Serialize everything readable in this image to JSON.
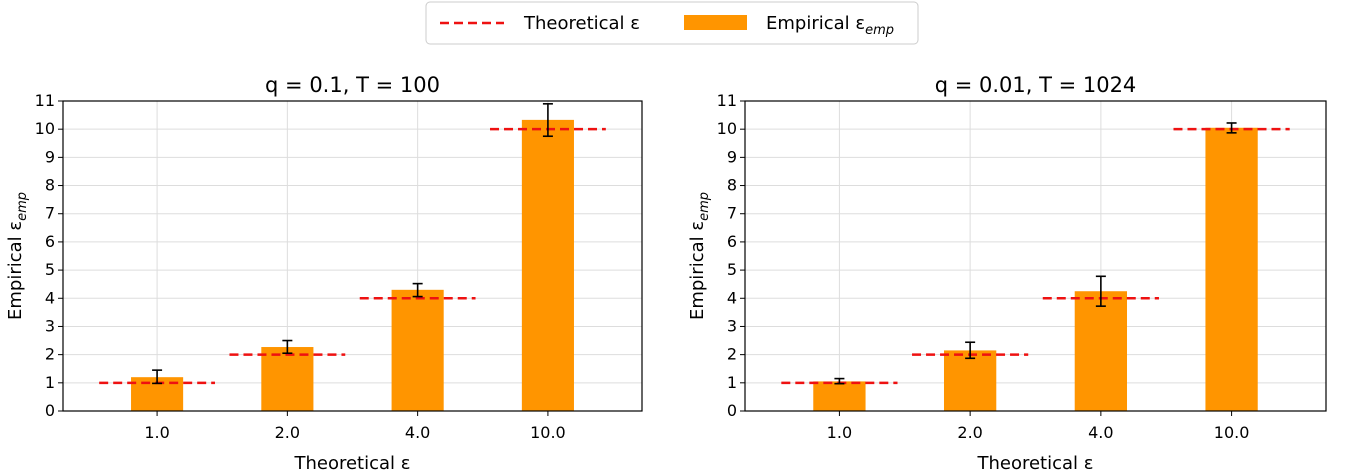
{
  "legend": {
    "placement": "top-center",
    "theoretical_label": "Theoretical ε",
    "empirical_label": "Empirical ε",
    "empirical_sub": "emp"
  },
  "colors": {
    "bar": "#ff9500",
    "theory_line": "#ee1111",
    "grid": "#dddddd",
    "error": "#000000"
  },
  "chart_data": [
    {
      "type": "bar",
      "title": "q = 0.1, T = 100",
      "xlabel": "Theoretical ε",
      "ylabel": "Empirical ε",
      "ylabel_sub": "emp",
      "categories": [
        "1.0",
        "2.0",
        "4.0",
        "10.0"
      ],
      "theoretical": [
        1,
        2,
        4,
        10
      ],
      "values": [
        1.2,
        2.27,
        4.3,
        10.33
      ],
      "err_low": [
        0.98,
        2.05,
        4.06,
        9.75
      ],
      "err_high": [
        1.45,
        2.5,
        4.52,
        10.9
      ],
      "ylim": [
        0,
        11
      ],
      "yticks": [
        0,
        1,
        2,
        3,
        4,
        5,
        6,
        7,
        8,
        9,
        10,
        11
      ],
      "grid": true
    },
    {
      "type": "bar",
      "title": "q = 0.01, T = 1024",
      "xlabel": "Theoretical ε",
      "ylabel": "Empirical ε",
      "ylabel_sub": "emp",
      "categories": [
        "1.0",
        "2.0",
        "4.0",
        "10.0"
      ],
      "theoretical": [
        1,
        2,
        4,
        10
      ],
      "values": [
        1.05,
        2.15,
        4.25,
        10.05
      ],
      "err_low": [
        0.97,
        1.87,
        3.72,
        9.87
      ],
      "err_high": [
        1.15,
        2.44,
        4.78,
        10.22
      ],
      "ylim": [
        0,
        11
      ],
      "yticks": [
        0,
        1,
        2,
        3,
        4,
        5,
        6,
        7,
        8,
        9,
        10,
        11
      ],
      "grid": true
    }
  ]
}
